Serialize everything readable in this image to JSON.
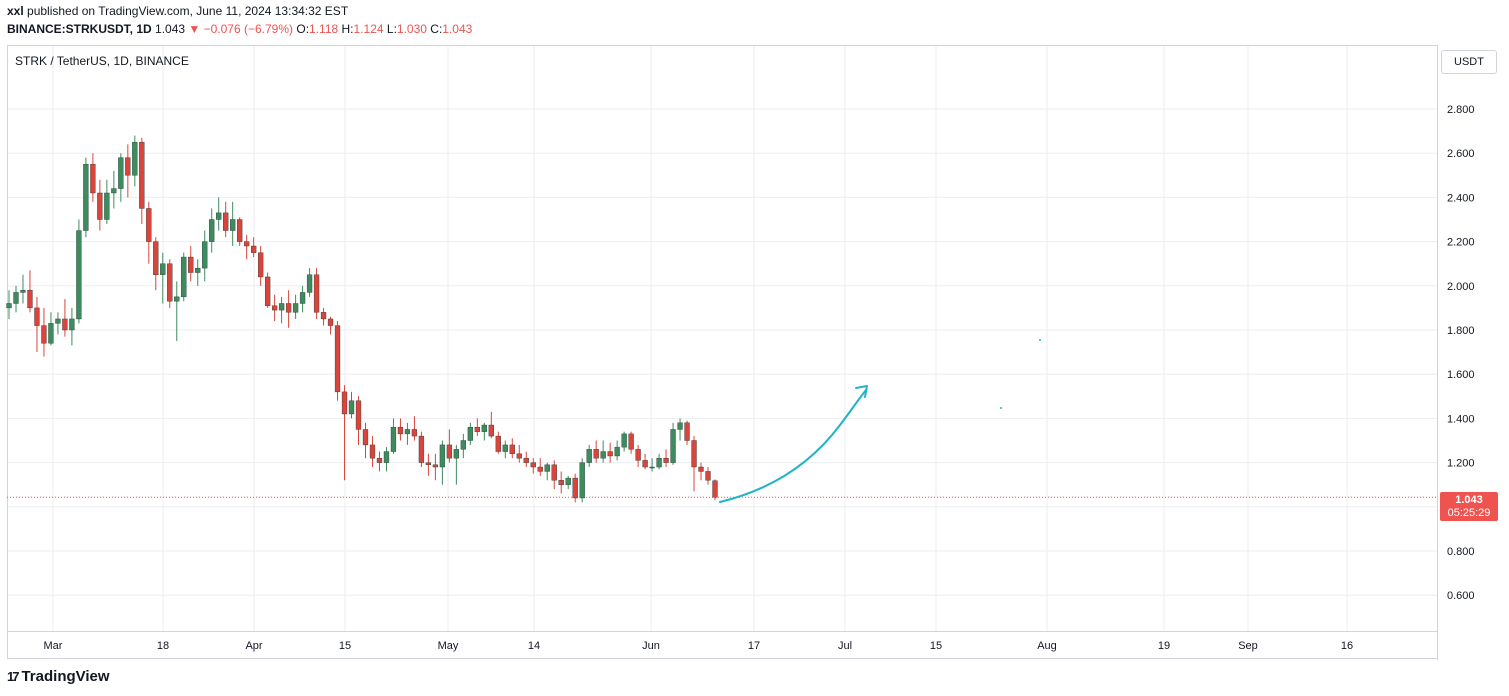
{
  "header": {
    "author": "xxl",
    "published": "published on TradingView.com, June 11, 2024 13:34:32 EST",
    "symbol": "BINANCE:STRKUSDT, 1D",
    "last": "1.043",
    "change": "▼ −0.076 (−6.79%)",
    "o_label": "O:",
    "o": "1.118",
    "h_label": "H:",
    "h": "1.124",
    "l_label": "L:",
    "l": "1.030",
    "c_label": "C:",
    "c": "1.043"
  },
  "currency": "USDT",
  "price_tag": {
    "price": "1.043",
    "countdown": "05:25:29"
  },
  "logo": {
    "mark": "17",
    "text": "TradingView"
  },
  "colors": {
    "up": "#3d8b5f",
    "down": "#d9453c",
    "arrow": "#1fb3c9",
    "grid": "#eceef2",
    "last_line": "#ef5350"
  },
  "chart_data": {
    "type": "candlestick",
    "title": "STRK / TetherUS, 1D, BINANCE",
    "y_ticks": [
      "2.800",
      "2.600",
      "2.400",
      "2.200",
      "2.000",
      "1.800",
      "1.600",
      "1.400",
      "1.200",
      "0.800",
      "0.600"
    ],
    "x_ticks": [
      "Mar",
      "18",
      "Apr",
      "15",
      "May",
      "14",
      "Jun",
      "17",
      "Jul",
      "15",
      "Aug",
      "19",
      "Sep",
      "16"
    ],
    "last_price": 1.043,
    "ohlc": [
      [
        1.9,
        1.98,
        1.85,
        1.92
      ],
      [
        1.92,
        2.0,
        1.88,
        1.97
      ],
      [
        1.97,
        2.05,
        1.92,
        1.98
      ],
      [
        1.98,
        2.07,
        1.88,
        1.9
      ],
      [
        1.9,
        1.95,
        1.7,
        1.82
      ],
      [
        1.82,
        1.9,
        1.68,
        1.74
      ],
      [
        1.74,
        1.88,
        1.73,
        1.83
      ],
      [
        1.83,
        1.88,
        1.78,
        1.85
      ],
      [
        1.85,
        1.94,
        1.77,
        1.8
      ],
      [
        1.8,
        1.9,
        1.73,
        1.85
      ],
      [
        1.85,
        2.3,
        1.83,
        2.25
      ],
      [
        2.25,
        2.58,
        2.22,
        2.55
      ],
      [
        2.55,
        2.6,
        2.38,
        2.42
      ],
      [
        2.42,
        2.48,
        2.25,
        2.3
      ],
      [
        2.3,
        2.48,
        2.28,
        2.42
      ],
      [
        2.42,
        2.52,
        2.35,
        2.44
      ],
      [
        2.44,
        2.6,
        2.38,
        2.58
      ],
      [
        2.58,
        2.64,
        2.4,
        2.5
      ],
      [
        2.5,
        2.68,
        2.45,
        2.65
      ],
      [
        2.65,
        2.67,
        2.28,
        2.35
      ],
      [
        2.35,
        2.38,
        2.1,
        2.2
      ],
      [
        2.2,
        2.22,
        1.98,
        2.05
      ],
      [
        2.05,
        2.15,
        1.92,
        2.1
      ],
      [
        2.1,
        2.12,
        1.9,
        1.93
      ],
      [
        1.93,
        2.02,
        1.75,
        1.95
      ],
      [
        1.95,
        2.15,
        1.93,
        2.13
      ],
      [
        2.13,
        2.18,
        2.02,
        2.06
      ],
      [
        2.06,
        2.12,
        2.0,
        2.08
      ],
      [
        2.08,
        2.25,
        2.02,
        2.2
      ],
      [
        2.2,
        2.35,
        2.15,
        2.3
      ],
      [
        2.3,
        2.4,
        2.25,
        2.33
      ],
      [
        2.33,
        2.38,
        2.22,
        2.25
      ],
      [
        2.25,
        2.38,
        2.18,
        2.3
      ],
      [
        2.3,
        2.31,
        2.18,
        2.2
      ],
      [
        2.2,
        2.23,
        2.12,
        2.18
      ],
      [
        2.18,
        2.22,
        2.13,
        2.15
      ],
      [
        2.15,
        2.18,
        2.0,
        2.04
      ],
      [
        2.04,
        2.06,
        1.9,
        1.91
      ],
      [
        1.91,
        1.96,
        1.84,
        1.89
      ],
      [
        1.89,
        1.95,
        1.83,
        1.92
      ],
      [
        1.92,
        1.98,
        1.81,
        1.88
      ],
      [
        1.88,
        1.96,
        1.85,
        1.92
      ],
      [
        1.92,
        2.0,
        1.88,
        1.97
      ],
      [
        1.97,
        2.08,
        1.95,
        2.05
      ],
      [
        2.05,
        2.08,
        1.85,
        1.88
      ],
      [
        1.88,
        1.9,
        1.82,
        1.85
      ],
      [
        1.85,
        1.86,
        1.78,
        1.82
      ],
      [
        1.82,
        1.84,
        1.48,
        1.52
      ],
      [
        1.52,
        1.55,
        1.12,
        1.42
      ],
      [
        1.42,
        1.52,
        1.4,
        1.48
      ],
      [
        1.48,
        1.5,
        1.28,
        1.35
      ],
      [
        1.35,
        1.38,
        1.22,
        1.28
      ],
      [
        1.28,
        1.32,
        1.18,
        1.22
      ],
      [
        1.22,
        1.25,
        1.16,
        1.2
      ],
      [
        1.2,
        1.27,
        1.16,
        1.25
      ],
      [
        1.25,
        1.4,
        1.24,
        1.36
      ],
      [
        1.36,
        1.4,
        1.3,
        1.33
      ],
      [
        1.33,
        1.38,
        1.28,
        1.35
      ],
      [
        1.35,
        1.41,
        1.3,
        1.32
      ],
      [
        1.32,
        1.34,
        1.18,
        1.2
      ],
      [
        1.2,
        1.24,
        1.14,
        1.19
      ],
      [
        1.19,
        1.24,
        1.12,
        1.18
      ],
      [
        1.18,
        1.3,
        1.1,
        1.28
      ],
      [
        1.28,
        1.35,
        1.2,
        1.22
      ],
      [
        1.22,
        1.28,
        1.1,
        1.26
      ],
      [
        1.26,
        1.33,
        1.22,
        1.3
      ],
      [
        1.3,
        1.38,
        1.28,
        1.36
      ],
      [
        1.36,
        1.4,
        1.32,
        1.34
      ],
      [
        1.34,
        1.38,
        1.3,
        1.37
      ],
      [
        1.37,
        1.43,
        1.31,
        1.32
      ],
      [
        1.32,
        1.34,
        1.24,
        1.25
      ],
      [
        1.25,
        1.3,
        1.22,
        1.28
      ],
      [
        1.28,
        1.31,
        1.22,
        1.24
      ],
      [
        1.24,
        1.28,
        1.2,
        1.22
      ],
      [
        1.22,
        1.25,
        1.18,
        1.2
      ],
      [
        1.2,
        1.22,
        1.15,
        1.18
      ],
      [
        1.18,
        1.22,
        1.14,
        1.16
      ],
      [
        1.16,
        1.2,
        1.12,
        1.19
      ],
      [
        1.19,
        1.21,
        1.08,
        1.12
      ],
      [
        1.12,
        1.16,
        1.06,
        1.1
      ],
      [
        1.1,
        1.14,
        1.08,
        1.13
      ],
      [
        1.13,
        1.15,
        1.02,
        1.04
      ],
      [
        1.04,
        1.22,
        1.02,
        1.2
      ],
      [
        1.2,
        1.28,
        1.18,
        1.26
      ],
      [
        1.26,
        1.3,
        1.2,
        1.22
      ],
      [
        1.22,
        1.3,
        1.2,
        1.25
      ],
      [
        1.25,
        1.29,
        1.2,
        1.23
      ],
      [
        1.23,
        1.3,
        1.21,
        1.27
      ],
      [
        1.27,
        1.34,
        1.25,
        1.33
      ],
      [
        1.33,
        1.34,
        1.24,
        1.26
      ],
      [
        1.26,
        1.28,
        1.18,
        1.21
      ],
      [
        1.21,
        1.24,
        1.17,
        1.18
      ],
      [
        1.18,
        1.22,
        1.16,
        1.18
      ],
      [
        1.18,
        1.24,
        1.17,
        1.22
      ],
      [
        1.22,
        1.26,
        1.18,
        1.2
      ],
      [
        1.2,
        1.38,
        1.19,
        1.35
      ],
      [
        1.35,
        1.4,
        1.3,
        1.38
      ],
      [
        1.38,
        1.39,
        1.28,
        1.3
      ],
      [
        1.3,
        1.32,
        1.07,
        1.18
      ],
      [
        1.18,
        1.2,
        1.12,
        1.16
      ],
      [
        1.16,
        1.18,
        1.1,
        1.12
      ],
      [
        1.118,
        1.124,
        1.03,
        1.043
      ]
    ]
  }
}
